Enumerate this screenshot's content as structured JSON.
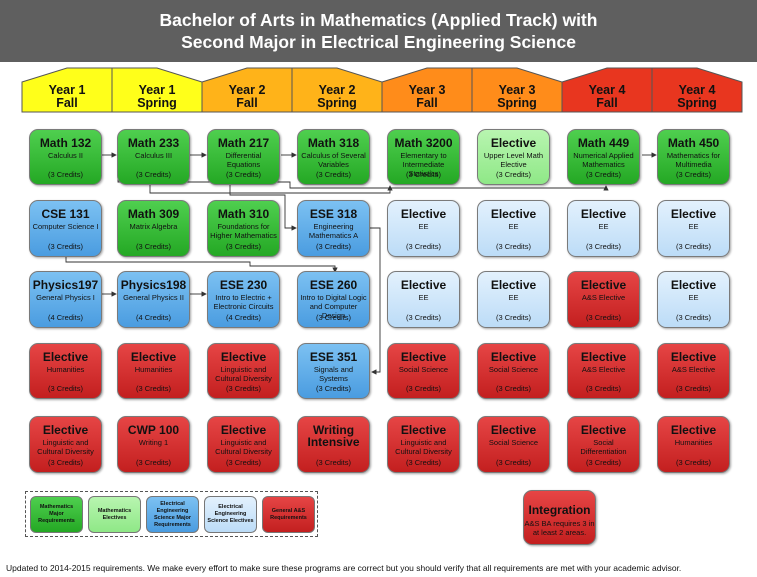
{
  "title": {
    "line1": "Bachelor of Arts in Mathematics (Applied Track) with",
    "line2": "Second Major in Electrical Engineering Science"
  },
  "colors": {
    "title_bar": "#5f5f5f",
    "year1": "#ffff1a",
    "year2": "#ffb319",
    "year3": "#ff8c1a",
    "year4": "#e8361f"
  },
  "semesters": [
    {
      "line1": "Year 1",
      "line2": "Fall"
    },
    {
      "line1": "Year 1",
      "line2": "Spring"
    },
    {
      "line1": "Year 2",
      "line2": "Fall"
    },
    {
      "line1": "Year 2",
      "line2": "Spring"
    },
    {
      "line1": "Year 3",
      "line2": "Fall"
    },
    {
      "line1": "Year 3",
      "line2": "Spring"
    },
    {
      "line1": "Year 4",
      "line2": "Fall"
    },
    {
      "line1": "Year 4",
      "line2": "Spring"
    }
  ],
  "courses": [
    {
      "title": "Math 132",
      "sub": "Calculus II",
      "credits": "(3 Credits)",
      "category": "green"
    },
    {
      "title": "Math 233",
      "sub": "Calculus III",
      "credits": "(3 Credits)",
      "category": "green"
    },
    {
      "title": "Math 217",
      "sub": "Differential Equations",
      "credits": "(3 Credits)",
      "category": "green"
    },
    {
      "title": "Math 318",
      "sub": "Calculus of Several Variables",
      "credits": "(3 Credits)",
      "category": "green"
    },
    {
      "title": "Math 3200",
      "sub": "Elementary to Intermediate Statistics",
      "credits": "(3 Credits)",
      "category": "green"
    },
    {
      "title": "Elective",
      "sub": "Upper Level Math Elective",
      "credits": "(3 Credits)",
      "category": "lgreen"
    },
    {
      "title": "Math 449",
      "sub": "Numerical Applied Mathematics",
      "credits": "(3 Credits)",
      "category": "green"
    },
    {
      "title": "Math 450",
      "sub": "Mathematics for Multimedia",
      "credits": "(3 Credits)",
      "category": "green"
    },
    {
      "title": "CSE 131",
      "sub": "Computer Science I",
      "credits": "(3 Credits)",
      "category": "blue"
    },
    {
      "title": "Math 309",
      "sub": "Matrix Algebra",
      "credits": "(3 Credits)",
      "category": "green"
    },
    {
      "title": "Math 310",
      "sub": "Foundations for Higher Mathematics",
      "credits": "(3 Credits)",
      "category": "green"
    },
    {
      "title": "ESE 318",
      "sub": "Engineering Mathematics A",
      "credits": "(3 Credits)",
      "category": "blue"
    },
    {
      "title": "Elective",
      "sub": "EE",
      "credits": "(3 Credits)",
      "category": "lblue"
    },
    {
      "title": "Elective",
      "sub": "EE",
      "credits": "(3 Credits)",
      "category": "lblue"
    },
    {
      "title": "Elective",
      "sub": "EE",
      "credits": "(3 Credits)",
      "category": "lblue"
    },
    {
      "title": "Elective",
      "sub": "EE",
      "credits": "(3 Credits)",
      "category": "lblue"
    },
    {
      "title": "Physics197",
      "sub": "General Physics I",
      "credits": "(4 Credits)",
      "category": "blue"
    },
    {
      "title": "Physics198",
      "sub": "General Physics II",
      "credits": "(4 Credits)",
      "category": "blue"
    },
    {
      "title": "ESE 230",
      "sub": "Intro to Electric + Electronic Circuits",
      "credits": "(4 Credits)",
      "category": "blue"
    },
    {
      "title": "ESE 260",
      "sub": "Intro to Digital Logic and Computer Design",
      "credits": "(3 Credits)",
      "category": "blue"
    },
    {
      "title": "Elective",
      "sub": "EE",
      "credits": "(3 Credits)",
      "category": "lblue"
    },
    {
      "title": "Elective",
      "sub": "EE",
      "credits": "(3 Credits)",
      "category": "lblue"
    },
    {
      "title": "Elective",
      "sub": "A&S Elective",
      "credits": "(3 Credits)",
      "category": "red"
    },
    {
      "title": "Elective",
      "sub": "EE",
      "credits": "(3 Credits)",
      "category": "lblue"
    },
    {
      "title": "Elective",
      "sub": "Humanities",
      "credits": "(3 Credits)",
      "category": "red"
    },
    {
      "title": "Elective",
      "sub": "Humanities",
      "credits": "(3 Credits)",
      "category": "red"
    },
    {
      "title": "Elective",
      "sub": "Linguistic and Cultural Diversity",
      "credits": "(3 Credits)",
      "category": "red"
    },
    {
      "title": "ESE 351",
      "sub": "Signals and Systems",
      "credits": "(3 Credits)",
      "category": "blue"
    },
    {
      "title": "Elective",
      "sub": "Social Science",
      "credits": "(3 Credits)",
      "category": "red"
    },
    {
      "title": "Elective",
      "sub": "Social Science",
      "credits": "(3 Credits)",
      "category": "red"
    },
    {
      "title": "Elective",
      "sub": "A&S Elective",
      "credits": "(3 Credits)",
      "category": "red"
    },
    {
      "title": "Elective",
      "sub": "A&S Elective",
      "credits": "(3 Credits)",
      "category": "red"
    },
    {
      "title": "Elective",
      "sub": "Linguistic and Cultural Diversity",
      "credits": "(3 Credits)",
      "category": "red"
    },
    {
      "title": "CWP 100",
      "sub": "Writing 1",
      "credits": "(3 Credits)",
      "category": "red"
    },
    {
      "title": "Elective",
      "sub": "Linguistic and Cultural Diversity",
      "credits": "(3 Credits)",
      "category": "red"
    },
    {
      "title": "Writing Intensive",
      "sub": "",
      "credits": "(3 Credits)",
      "category": "red"
    },
    {
      "title": "Elective",
      "sub": "Linguistic and Cultural Diversity",
      "credits": "(3 Credits)",
      "category": "red"
    },
    {
      "title": "Elective",
      "sub": "Social Science",
      "credits": "(3 Credits)",
      "category": "red"
    },
    {
      "title": "Elective",
      "sub": "Social Differentiation",
      "credits": "(3 Credits)",
      "category": "red"
    },
    {
      "title": "Elective",
      "sub": "Humanities",
      "credits": "(3 Credits)",
      "category": "red"
    }
  ],
  "legend": [
    {
      "label": "Mathematics Major Requirements",
      "category": "green"
    },
    {
      "label": "Mathematics Electives",
      "category": "lgreen"
    },
    {
      "label": "Electrical Engineering Science Major Requirements",
      "category": "blue"
    },
    {
      "label": "Electrical Engineering Science Electives",
      "category": "lblue"
    },
    {
      "label": "General A&S Requirements",
      "category": "red"
    }
  ],
  "integration": {
    "title": "Integration",
    "sub": "A&S BA requires 3 in at least 2 areas."
  },
  "footnote": "Updated to 2014-2015  requirements. We make every effort to make sure these programs are correct but you should verify that all requirements are met with your academic advisor."
}
